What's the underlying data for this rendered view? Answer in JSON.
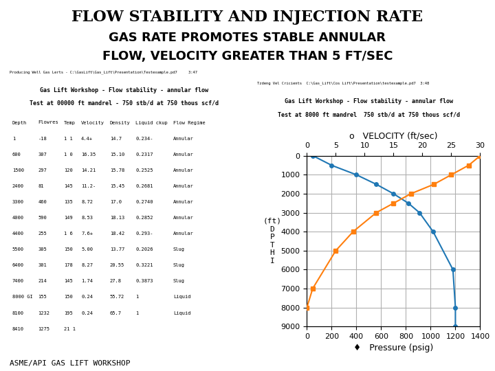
{
  "title": "FLOW STABILITY AND INJECTION RATE",
  "subtitle": [
    "GAS RATE PROMOTES STABLE ANNULAR",
    "FLOW, VELOCITY GREATER THAN 5 FT/SEC"
  ],
  "annotations": [
    "ASME/API GAS LIFT WORKSHOP"
  ],
  "chart_data": [
    {
      "type": "table",
      "annotations": [
        "Producing Well Gas Lerts - C:\\GasLift\\Gas_Lift\\Presentation\\Testexample.pd7     3:47"
      ],
      "title": "Gas Lift Workshop - Flow stability - annular flow",
      "subtitle": "Test at 00000 ft mandrel - 750 stb/d at 750 thous scf/d",
      "columns": [
        "Depth",
        "Flowres",
        "Temp",
        "Velocity",
        "Density",
        "Liquid ckup",
        "Flow Regime"
      ],
      "rows": [
        [
          "1",
          "-18",
          "1 1",
          "4.4+",
          "14.7",
          "0.234-",
          "Annular"
        ],
        [
          "600",
          "307",
          "1 0",
          "16.35",
          "15.10",
          "0.2317",
          "Annular"
        ],
        [
          "1500",
          "297",
          "120",
          "14.21",
          "15.78",
          "0.2525",
          "Annular"
        ],
        [
          "2400",
          "81",
          "145",
          "11.2-",
          "15.45",
          "0.2681",
          "Annular"
        ],
        [
          "3300",
          "460",
          "135",
          "8.72",
          "17.0",
          "0.2740",
          "Annular"
        ],
        [
          "4000",
          "590",
          "149",
          "8.53",
          "18.13",
          "0.2852",
          "Annular"
        ],
        [
          "4400",
          "255",
          "1 6",
          "7.6+",
          "18.42",
          "0.293-",
          "Annular"
        ],
        [
          "5500",
          "305",
          "150",
          "5.00",
          "13.77",
          "0.2026",
          "Slug"
        ],
        [
          "6400",
          "301",
          "178",
          "8.27",
          "20.55",
          "0.3221",
          "Slug"
        ],
        [
          "7400",
          "214",
          "145",
          "1.74",
          "27.8",
          "0.3873",
          "Slug"
        ],
        [
          "8000 GI",
          "155",
          "150",
          "0.24",
          "55.72",
          "1",
          "Liquid"
        ],
        [
          "8100",
          "1232",
          "195",
          "0.24",
          "65.7",
          "1",
          "Liquid"
        ],
        [
          "8410",
          "1275",
          "21 1",
          null,
          null,
          null,
          null
        ]
      ]
    },
    {
      "type": "line",
      "annotations": [
        "Tzdeng Vel Cricients  C:\\Gas_Lift\\Cos Lift\\Presentation\\testexample.pd7  3:48"
      ],
      "title": "Gas Lift Workshop - Flow stability - annular flow",
      "subtitle": "Test at 8000 ft mandrel  750 stb/d at 750 thous scf/d",
      "x_label": "♦   Pressure (psig)",
      "x2_label": "o   VELOCITY (ft/sec)",
      "y_label": [
        "(ft)",
        "D",
        "P",
        "T",
        "H",
        "I"
      ],
      "xlim": [
        0,
        1400
      ],
      "xticks": [
        0,
        200,
        400,
        600,
        800,
        1000,
        1200,
        1400
      ],
      "x2lim": [
        0,
        30
      ],
      "x2ticks": [
        0,
        5,
        10,
        15,
        20,
        25,
        30
      ],
      "ylim": [
        9000,
        0
      ],
      "yticks": [
        0,
        1000,
        2000,
        3000,
        4000,
        5000,
        6000,
        7000,
        8000,
        9000
      ],
      "grid": true,
      "series": [
        {
          "x": [
            50,
            200,
            400,
            560,
            700,
            820,
            910,
            1020,
            1180,
            1200,
            1200
          ],
          "values": [
            0,
            500,
            1000,
            1500,
            2000,
            2500,
            3000,
            4000,
            6000,
            8000,
            9000
          ],
          "marker": "circle",
          "line_style": "solid"
        },
        {
          "x": [
            30,
            28,
            25,
            22,
            18,
            15,
            12,
            8,
            5,
            1,
            0
          ],
          "values": [
            0,
            500,
            1000,
            1500,
            2000,
            2500,
            3000,
            4000,
            5000,
            7000,
            8000
          ],
          "axis": "x2",
          "marker": "square",
          "line_style": "solid"
        }
      ]
    }
  ]
}
